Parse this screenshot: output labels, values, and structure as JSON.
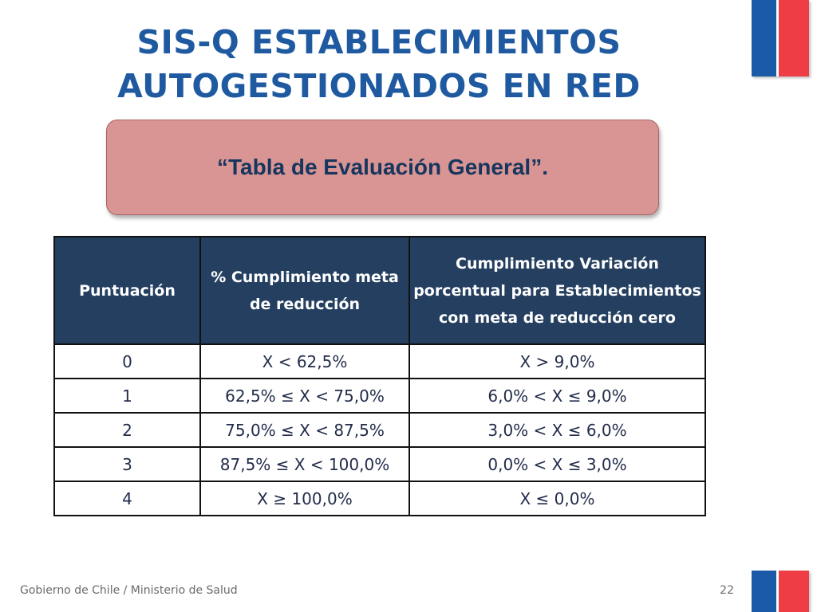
{
  "slide": {
    "title_line1": "SIS-Q ESTABLECIMIENTOS",
    "title_line2": "AUTOGESTIONADOS EN RED",
    "callout": "“Tabla de Evaluación General”.",
    "page_number": "22",
    "footer": "Gobierno de Chile / Ministerio de Salud"
  },
  "colors": {
    "title": "#1f5aa1",
    "callout_fill": "#d99594",
    "table_header": "#243f60",
    "flag_blue": "#1a5aa6",
    "flag_red": "#ee3d45"
  },
  "table": {
    "headers": [
      "Puntuación",
      "% Cumplimiento meta de reducción",
      "Cumplimiento Variación porcentual para Establecimientos con meta de reducción cero"
    ],
    "rows": [
      [
        "0",
        "X < 62,5%",
        "X > 9,0%"
      ],
      [
        "1",
        "62,5% ≤ X < 75,0%",
        "6,0% < X ≤ 9,0%"
      ],
      [
        "2",
        "75,0% ≤ X < 87,5%",
        "3,0% < X ≤ 6,0%"
      ],
      [
        "3",
        "87,5% ≤ X < 100,0%",
        "0,0% < X ≤ 3,0%"
      ],
      [
        "4",
        "X ≥ 100,0%",
        "X ≤ 0,0%"
      ]
    ]
  }
}
